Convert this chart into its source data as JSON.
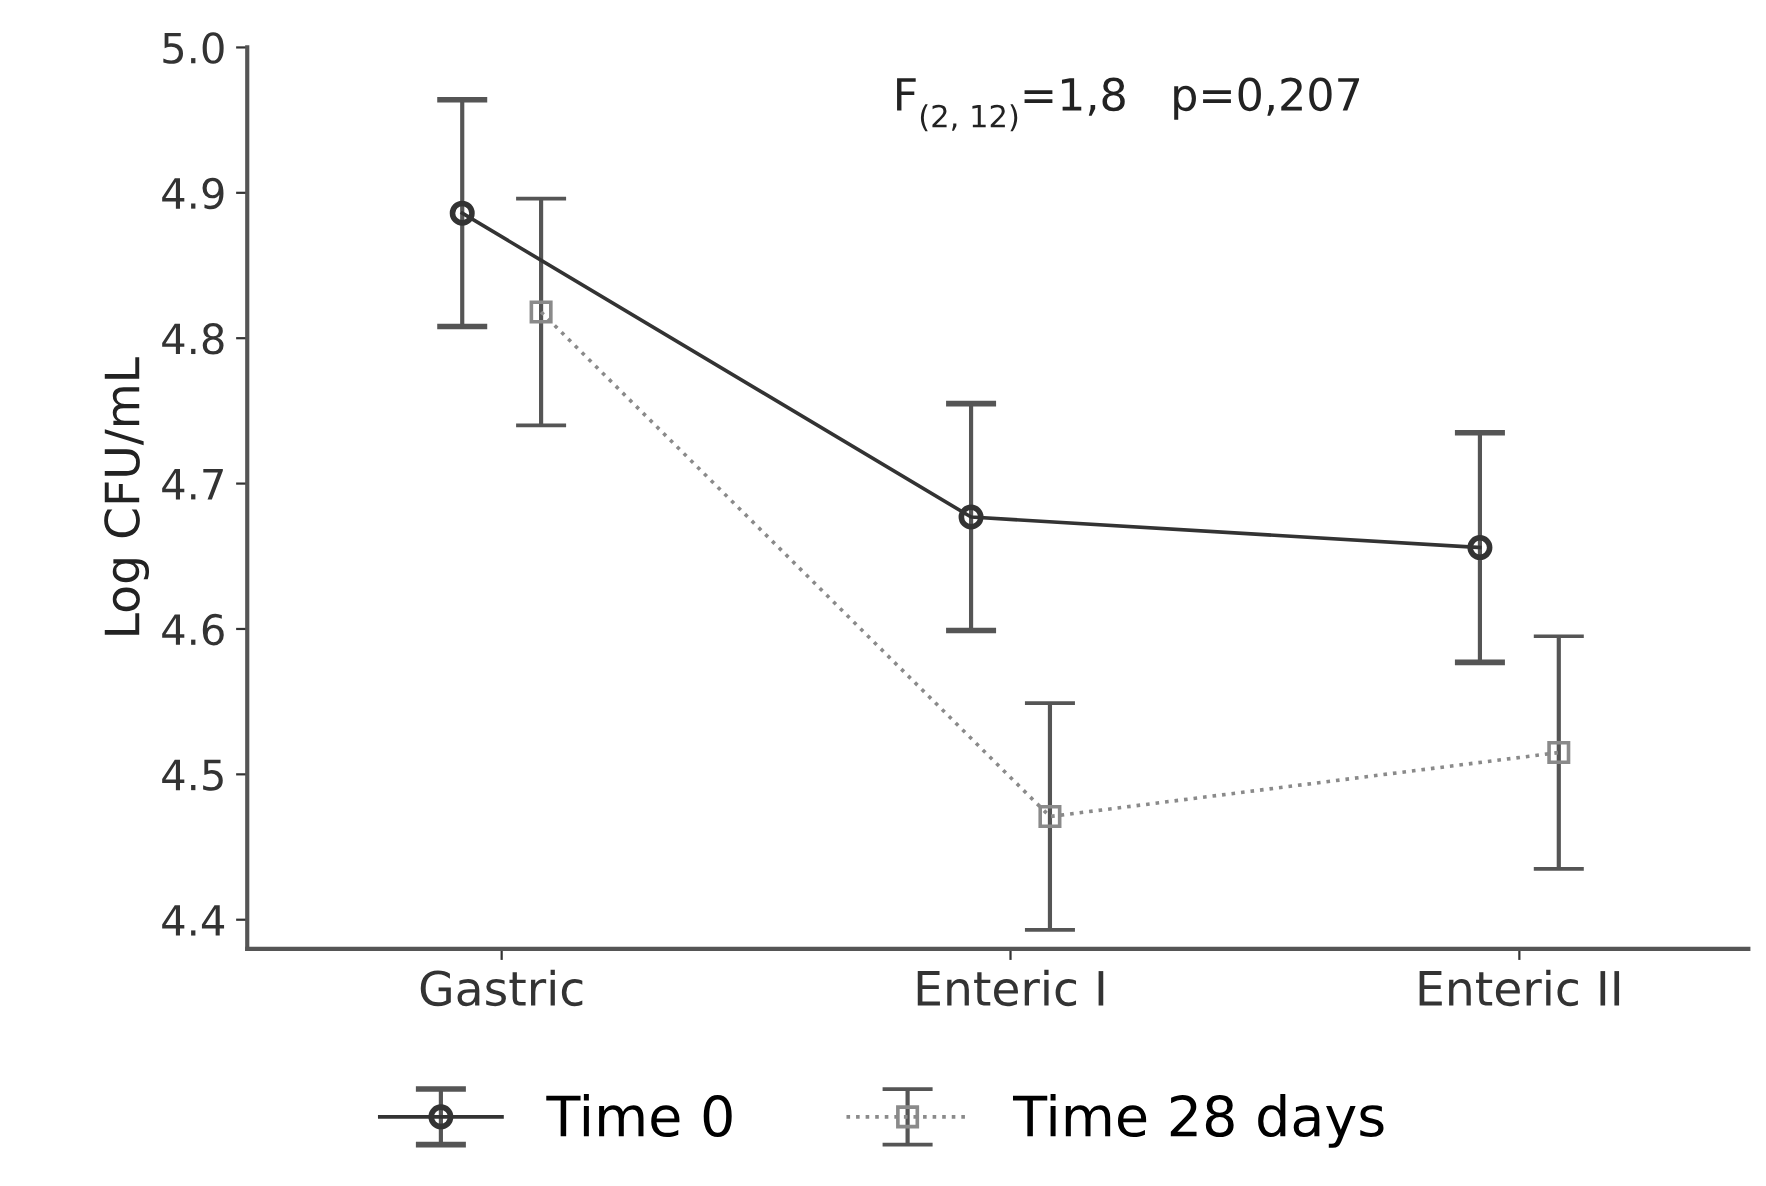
{
  "chart_data": {
    "type": "line",
    "ylabel": "Log CFU/mL",
    "categories": [
      "Gastric",
      "Enteric I",
      "Enteric II"
    ],
    "series": [
      {
        "name": "Time 0",
        "color": "#333333",
        "values": [
          4.886,
          4.677,
          4.656
        ],
        "errors": [
          0.078,
          0.078,
          0.079
        ],
        "line_style": "solid",
        "marker": "circle"
      },
      {
        "name": "Time 28 days",
        "color": "#8a8a8a",
        "values": [
          4.818,
          4.471,
          4.515
        ],
        "errors": [
          0.078,
          0.078,
          0.08
        ],
        "line_style": "dotted",
        "marker": "square"
      }
    ],
    "ylim": [
      4.38,
      5.0
    ],
    "yticks": [
      {
        "value": 4.4,
        "label": "4.4"
      },
      {
        "value": 4.5,
        "label": "4.5"
      },
      {
        "value": 4.6,
        "label": "4.6"
      },
      {
        "value": 4.7,
        "label": "4.7"
      },
      {
        "value": 4.8,
        "label": "4.8"
      },
      {
        "value": 4.9,
        "label": "4.9"
      },
      {
        "value": 5.0,
        "label": "5.0"
      }
    ],
    "annotations": [
      "F$_{(2, 12)}$=1,8   p=0,207"
    ],
    "grid": false,
    "legend": "bottom"
  }
}
